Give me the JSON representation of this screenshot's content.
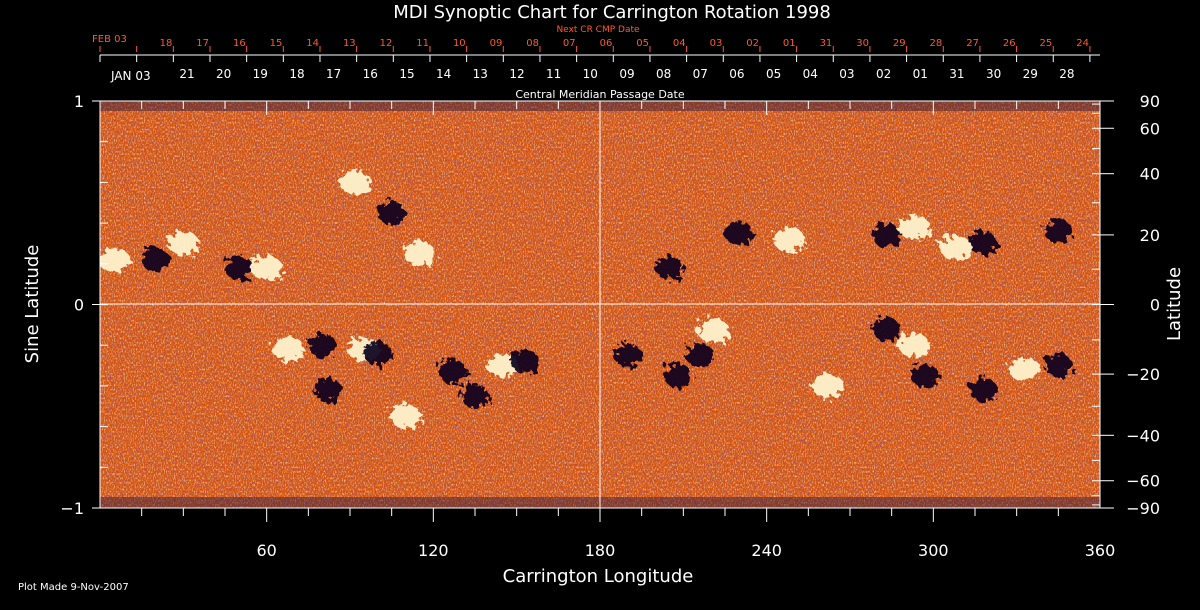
{
  "chart_data": {
    "type": "heatmap",
    "title": "MDI Synoptic Chart for Carrington Rotation 1998",
    "xlabel": "Carrington Longitude",
    "ylabel_left": "Sine Latitude",
    "ylabel_right": "Latitude",
    "xlim": [
      0,
      360
    ],
    "ylim": [
      -1,
      1
    ],
    "x_ticks": [
      "60",
      "120",
      "180",
      "240",
      "300",
      "360"
    ],
    "y_ticks_left": [
      "1",
      "0",
      "−1"
    ],
    "y_ticks_right": [
      "90",
      "60",
      "40",
      "20",
      "0",
      "−20",
      "−40",
      "−60",
      "−90"
    ],
    "y_ticks_right_values": [
      90,
      60,
      40,
      20,
      0,
      -20,
      -40,
      -60,
      -90
    ],
    "cmp_axis_label": "Central Meridian Passage Date",
    "cmp_month_label": "JAN 03",
    "cmp_dates": [
      "21",
      "20",
      "19",
      "18",
      "17",
      "16",
      "15",
      "14",
      "13",
      "12",
      "11",
      "10",
      "09",
      "08",
      "07",
      "06",
      "05",
      "04",
      "03",
      "02",
      "01",
      "31",
      "30",
      "29",
      "28"
    ],
    "next_cr_label": "Next CR CMP Date",
    "next_cr_month_label": "FEB 03",
    "next_cr_dates": [
      "18",
      "17",
      "16",
      "15",
      "14",
      "13",
      "12",
      "11",
      "10",
      "09",
      "08",
      "07",
      "06",
      "05",
      "04",
      "03",
      "02",
      "01",
      "31",
      "30",
      "29",
      "28",
      "27",
      "26",
      "25",
      "24"
    ],
    "colors": {
      "background": "#000000",
      "text": "#ffffff",
      "next_cr_text": "#ff5a2a",
      "field_neutral": "#d8560e",
      "field_positive": "#fff6d0",
      "field_negative": "#0a0520"
    },
    "regions": [
      {
        "polarity": "positive",
        "lon": 5,
        "sinlat": 0.22
      },
      {
        "polarity": "negative",
        "lon": 20,
        "sinlat": 0.22
      },
      {
        "polarity": "positive",
        "lon": 30,
        "sinlat": 0.3
      },
      {
        "polarity": "negative",
        "lon": 50,
        "sinlat": 0.18
      },
      {
        "polarity": "positive",
        "lon": 60,
        "sinlat": 0.18
      },
      {
        "polarity": "positive",
        "lon": 92,
        "sinlat": 0.6
      },
      {
        "polarity": "negative",
        "lon": 105,
        "sinlat": 0.45
      },
      {
        "polarity": "positive",
        "lon": 115,
        "sinlat": 0.25
      },
      {
        "polarity": "positive",
        "lon": 68,
        "sinlat": -0.22
      },
      {
        "polarity": "negative",
        "lon": 80,
        "sinlat": -0.2
      },
      {
        "polarity": "positive",
        "lon": 95,
        "sinlat": -0.22
      },
      {
        "polarity": "negative",
        "lon": 100,
        "sinlat": -0.24
      },
      {
        "polarity": "negative",
        "lon": 82,
        "sinlat": -0.42
      },
      {
        "polarity": "positive",
        "lon": 110,
        "sinlat": -0.55
      },
      {
        "polarity": "negative",
        "lon": 127,
        "sinlat": -0.33
      },
      {
        "polarity": "negative",
        "lon": 135,
        "sinlat": -0.45
      },
      {
        "polarity": "positive",
        "lon": 145,
        "sinlat": -0.3
      },
      {
        "polarity": "negative",
        "lon": 153,
        "sinlat": -0.28
      },
      {
        "polarity": "negative",
        "lon": 190,
        "sinlat": -0.25
      },
      {
        "polarity": "negative",
        "lon": 208,
        "sinlat": -0.35
      },
      {
        "polarity": "positive",
        "lon": 221,
        "sinlat": -0.13
      },
      {
        "polarity": "negative",
        "lon": 216,
        "sinlat": -0.25
      },
      {
        "polarity": "negative",
        "lon": 205,
        "sinlat": 0.18
      },
      {
        "polarity": "negative",
        "lon": 230,
        "sinlat": 0.35
      },
      {
        "polarity": "positive",
        "lon": 248,
        "sinlat": 0.32
      },
      {
        "polarity": "negative",
        "lon": 283,
        "sinlat": 0.34
      },
      {
        "polarity": "positive",
        "lon": 293,
        "sinlat": 0.38
      },
      {
        "polarity": "negative",
        "lon": 318,
        "sinlat": 0.3
      },
      {
        "polarity": "positive",
        "lon": 308,
        "sinlat": 0.28
      },
      {
        "polarity": "negative",
        "lon": 345,
        "sinlat": 0.36
      },
      {
        "polarity": "negative",
        "lon": 297,
        "sinlat": -0.35
      },
      {
        "polarity": "positive",
        "lon": 293,
        "sinlat": -0.2
      },
      {
        "polarity": "negative",
        "lon": 283,
        "sinlat": -0.12
      },
      {
        "polarity": "negative",
        "lon": 318,
        "sinlat": -0.42
      },
      {
        "polarity": "positive",
        "lon": 333,
        "sinlat": -0.32
      },
      {
        "polarity": "negative",
        "lon": 345,
        "sinlat": -0.3
      },
      {
        "polarity": "positive",
        "lon": 262,
        "sinlat": -0.4
      }
    ]
  },
  "footer": {
    "plot_made": "Plot Made  9-Nov-2007"
  }
}
